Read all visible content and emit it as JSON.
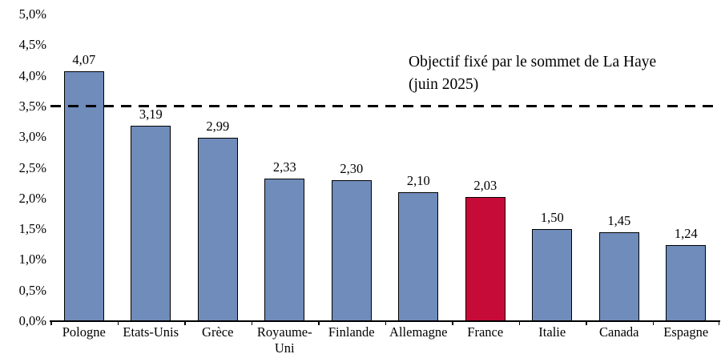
{
  "chart_data": {
    "type": "bar",
    "title": "",
    "xlabel": "",
    "ylabel": "",
    "categories": [
      "Pologne",
      "Etats-Unis",
      "Grèce",
      "Royaume-Uni",
      "Finlande",
      "Allemagne",
      "France",
      "Italie",
      "Canada",
      "Espagne"
    ],
    "values": [
      4.07,
      3.19,
      2.99,
      2.33,
      2.3,
      2.1,
      2.03,
      1.5,
      1.45,
      1.24
    ],
    "value_labels": [
      "4,07",
      "3,19",
      "2,99",
      "2,33",
      "2,30",
      "2,10",
      "2,03",
      "1,50",
      "1,45",
      "1,24"
    ],
    "unit": "% ",
    "ylim": [
      0,
      5
    ],
    "ytick_step": 0.5,
    "ytick_labels": [
      "0,0%",
      "0,5%",
      "1,0%",
      "1,5%",
      "2,0%",
      "2,5%",
      "3,0%",
      "3,5%",
      "4,0%",
      "4,5%",
      "5,0%"
    ],
    "grid": false,
    "legend_position": "none",
    "bar_color": "#6f8cba",
    "bar_border_color": "#000000",
    "highlight_category": "France",
    "highlight_index": 6,
    "highlight_color": "#c60b38",
    "reference_line": {
      "value": 3.5,
      "style": "dashed",
      "color": "#000000"
    },
    "annotation": {
      "line1": "Objectif fixé par le sommet de La Haye",
      "line2": "(juin 2025)"
    }
  }
}
